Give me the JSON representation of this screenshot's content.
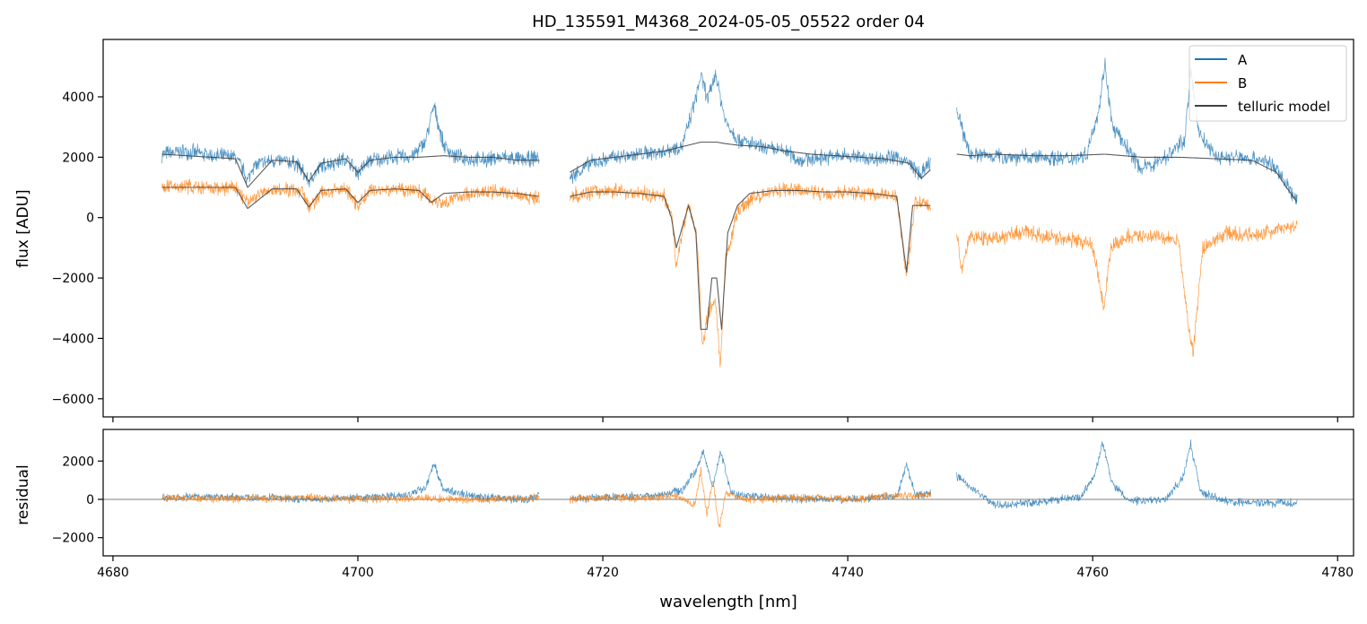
{
  "title": "HD_135591_M4368_2024-05-05_05522  order 04",
  "colors": {
    "A": "#1f77b4",
    "B": "#ff7f0e",
    "telluric": "#404040",
    "zero_line": "#555555"
  },
  "chart_data": [
    {
      "id": "spectrum",
      "type": "line",
      "xlabel": "",
      "ylabel": "flux [ADU]",
      "xlim": [
        4679.2,
        4781.3
      ],
      "ylim": [
        -6600,
        5900
      ],
      "xticks": [
        4680,
        4700,
        4720,
        4740,
        4760,
        4780
      ],
      "xtick_labels": [],
      "yticks": [
        -6000,
        -4000,
        -2000,
        0,
        2000,
        4000
      ],
      "ytick_labels": [
        "−6000",
        "−4000",
        "−2000",
        "0",
        "2000",
        "4000"
      ],
      "legend": {
        "placement": "top-right",
        "entries": [
          "A",
          "B",
          "telluric model"
        ]
      },
      "segments": [
        [
          4684.0,
          4714.8
        ],
        [
          4717.3,
          4746.8
        ],
        [
          4748.9,
          4776.7
        ]
      ],
      "series": [
        {
          "name": "A",
          "x": [
            4684.0,
            4686.0,
            4688.0,
            4690.0,
            4690.6,
            4691.0,
            4691.4,
            4693.0,
            4695.0,
            4696.0,
            4697.0,
            4699.0,
            4700.0,
            4701.0,
            4703.0,
            4704.5,
            4705.5,
            4706.2,
            4707.0,
            4708.0,
            4710.0,
            4712.0,
            4713.5,
            4714.8,
            4717.3,
            4719.0,
            4721.0,
            4723.0,
            4725.0,
            4726.5,
            4727.5,
            4728.0,
            4728.6,
            4729.2,
            4730.0,
            4731.0,
            4733.0,
            4735.0,
            4736.0,
            4738.0,
            4740.0,
            4742.0,
            4744.0,
            4745.0,
            4746.0,
            4746.8,
            4748.9,
            4750.0,
            4752.0,
            4754.0,
            4756.0,
            4758.0,
            4759.5,
            4760.5,
            4761.0,
            4761.6,
            4763.0,
            4764.0,
            4766.0,
            4767.5,
            4768.0,
            4768.7,
            4770.0,
            4772.0,
            4774.0,
            4775.0,
            4776.0,
            4776.7
          ],
          "values": [
            2100,
            2200,
            2050,
            2000,
            1600,
            1200,
            1700,
            1900,
            1800,
            1200,
            1700,
            1950,
            1500,
            1900,
            2000,
            2050,
            2500,
            3700,
            2400,
            2000,
            1900,
            2000,
            1900,
            2000,
            1300,
            1800,
            2000,
            2100,
            2200,
            2400,
            3800,
            4700,
            3900,
            4800,
            3200,
            2600,
            2300,
            2200,
            1900,
            2000,
            2050,
            1950,
            2000,
            1800,
            1400,
            1900,
            3500,
            2100,
            2050,
            2000,
            2000,
            1950,
            2100,
            3600,
            5100,
            3000,
            2200,
            1600,
            2000,
            2600,
            4800,
            2800,
            2000,
            2000,
            1900,
            1600,
            1000,
            500
          ]
        },
        {
          "name": "B",
          "x": [
            4684.0,
            4686.0,
            4688.0,
            4690.0,
            4691.0,
            4692.0,
            4694.0,
            4695.5,
            4696.0,
            4697.0,
            4699.0,
            4700.0,
            4701.0,
            4703.0,
            4705.0,
            4706.0,
            4707.0,
            4709.0,
            4711.0,
            4713.0,
            4714.8,
            4717.3,
            4719.0,
            4721.0,
            4723.0,
            4725.0,
            4725.6,
            4726.0,
            4727.0,
            4727.7,
            4728.1,
            4728.6,
            4729.2,
            4729.6,
            4730.0,
            4731.0,
            4732.0,
            4734.0,
            4736.0,
            4738.0,
            4740.0,
            4742.0,
            4744.0,
            4744.8,
            4745.5,
            4746.8,
            4748.9,
            4749.3,
            4750.0,
            4752.0,
            4754.0,
            4756.0,
            4758.0,
            4760.0,
            4760.9,
            4761.5,
            4763.0,
            4765.0,
            4767.0,
            4767.8,
            4768.2,
            4769.0,
            4771.0,
            4773.0,
            4775.0,
            4776.7
          ],
          "values": [
            1000,
            1050,
            950,
            1000,
            500,
            800,
            950,
            900,
            300,
            800,
            950,
            400,
            900,
            950,
            900,
            600,
            500,
            800,
            850,
            800,
            600,
            700,
            850,
            900,
            800,
            700,
            100,
            -1500,
            500,
            -700,
            -4200,
            -3200,
            -2800,
            -5000,
            -1500,
            200,
            600,
            900,
            900,
            800,
            850,
            800,
            700,
            -2000,
            500,
            400,
            -500,
            -1800,
            -600,
            -700,
            -500,
            -600,
            -700,
            -900,
            -3000,
            -1000,
            -600,
            -600,
            -800,
            -3500,
            -4500,
            -1000,
            -500,
            -600,
            -400,
            -300
          ]
        },
        {
          "name": "telluric model",
          "x": [
            4684.0,
            4686.0,
            4688.0,
            4690.0,
            4691.0,
            4693.0,
            4695.0,
            4696.0,
            4697.0,
            4699.0,
            4700.0,
            4701.0,
            4703.0,
            4705.0,
            4707.0,
            4709.0,
            4711.0,
            4713.0,
            4714.8,
            4717.3,
            4719.0,
            4721.0,
            4723.0,
            4725.0,
            4726.0,
            4727.0,
            4728.0,
            4728.7,
            4729.3,
            4730.0,
            4731.0,
            4733.0,
            4735.0,
            4737.0,
            4739.0,
            4741.0,
            4743.0,
            4745.0,
            4746.0,
            4746.8,
            4748.9,
            4750.0,
            4752.0,
            4755.0,
            4758.0,
            4761.0,
            4764.0,
            4767.0,
            4770.0,
            4773.0,
            4775.0,
            4776.0,
            4776.7
          ],
          "values": [
            2100,
            2050,
            2000,
            1950,
            1000,
            1900,
            1850,
            1200,
            1800,
            1950,
            1500,
            1900,
            2000,
            2000,
            2050,
            2000,
            2000,
            1900,
            1900,
            1500,
            1900,
            2000,
            2100,
            2200,
            2300,
            2400,
            2500,
            2500,
            2500,
            2450,
            2400,
            2350,
            2200,
            2100,
            2050,
            2000,
            1950,
            1800,
            1300,
            1600,
            2100,
            2050,
            2100,
            2050,
            2050,
            2100,
            2000,
            2000,
            1950,
            1900,
            1500,
            900,
            500
          ]
        },
        {
          "name": "telluric model (B)",
          "x": [
            4684.0,
            4686.0,
            4688.0,
            4690.0,
            4691.0,
            4693.0,
            4695.0,
            4696.0,
            4697.0,
            4699.0,
            4700.0,
            4701.0,
            4703.0,
            4705.0,
            4706.0,
            4707.0,
            4709.0,
            4711.0,
            4713.0,
            4714.8,
            4717.3,
            4719.0,
            4721.0,
            4723.0,
            4725.0,
            4725.6,
            4726.0,
            4727.0,
            4727.6,
            4728.0,
            4728.5,
            4728.9,
            4729.3,
            4729.7,
            4730.2,
            4731.0,
            4732.0,
            4734.0,
            4736.0,
            4738.0,
            4740.0,
            4742.0,
            4744.0,
            4744.8,
            4745.3,
            4746.8
          ],
          "values": [
            1000,
            1000,
            1000,
            1000,
            300,
            950,
            950,
            350,
            900,
            950,
            500,
            900,
            950,
            900,
            500,
            800,
            850,
            850,
            800,
            700,
            700,
            850,
            850,
            800,
            700,
            0,
            -1000,
            400,
            -500,
            -3700,
            -3700,
            -2000,
            -2000,
            -3700,
            -500,
            400,
            800,
            900,
            900,
            850,
            850,
            800,
            700,
            -1800,
            400,
            400
          ]
        }
      ]
    },
    {
      "id": "residual",
      "type": "line",
      "xlabel": "wavelength [nm]",
      "ylabel": "residual",
      "xlim": [
        4679.2,
        4781.3
      ],
      "ylim": [
        -2950,
        3650
      ],
      "xticks": [
        4680,
        4700,
        4720,
        4740,
        4760,
        4780
      ],
      "xtick_labels": [
        "4680",
        "4700",
        "4720",
        "4740",
        "4760",
        "4780"
      ],
      "yticks": [
        -2000,
        0,
        2000
      ],
      "ytick_labels": [
        "−2000",
        "0",
        "2000"
      ],
      "segments": [
        [
          4684.0,
          4714.8
        ],
        [
          4717.3,
          4746.8
        ],
        [
          4748.9,
          4776.7
        ]
      ],
      "series": [
        {
          "name": "A",
          "x": [
            4684.0,
            4688.0,
            4692.0,
            4696.0,
            4700.0,
            4704.0,
            4705.5,
            4706.2,
            4707.0,
            4710.0,
            4714.0,
            4714.8,
            4717.3,
            4720.0,
            4724.0,
            4726.5,
            4727.6,
            4728.2,
            4729.0,
            4729.6,
            4730.5,
            4733.0,
            4737.0,
            4741.0,
            4744.0,
            4744.8,
            4745.5,
            4746.8,
            4748.9,
            4752.0,
            4756.0,
            4759.0,
            4760.2,
            4760.8,
            4761.6,
            4763.0,
            4766.0,
            4767.4,
            4768.0,
            4768.8,
            4771.0,
            4774.0,
            4776.7
          ],
          "values": [
            100,
            150,
            100,
            0,
            100,
            200,
            600,
            1900,
            500,
            100,
            0,
            300,
            0,
            100,
            200,
            500,
            1500,
            2500,
            600,
            2500,
            300,
            100,
            0,
            0,
            200,
            1800,
            200,
            300,
            1200,
            -300,
            -100,
            100,
            1300,
            3000,
            800,
            -100,
            0,
            1200,
            2900,
            400,
            -100,
            -200,
            -200
          ]
        },
        {
          "name": "B",
          "x": [
            4684.0,
            4688.0,
            4692.0,
            4696.0,
            4700.0,
            4704.0,
            4708.0,
            4711.0,
            4714.8,
            4717.3,
            4720.0,
            4724.0,
            4726.0,
            4727.5,
            4728.0,
            4728.5,
            4729.0,
            4729.5,
            4730.0,
            4732.0,
            4736.0,
            4740.0,
            4744.0,
            4746.8
          ],
          "values": [
            100,
            0,
            50,
            100,
            0,
            50,
            0,
            0,
            100,
            0,
            100,
            50,
            200,
            -300,
            1500,
            -800,
            1000,
            -1500,
            300,
            0,
            100,
            0,
            200,
            200
          ]
        }
      ]
    }
  ]
}
